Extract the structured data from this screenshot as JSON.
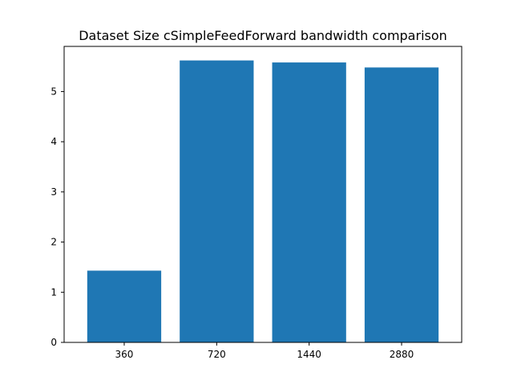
{
  "chart_data": {
    "type": "bar",
    "title": "Dataset Size cSimpleFeedForward bandwidth comparison",
    "xlabel": "",
    "ylabel": "",
    "categories": [
      "360",
      "720",
      "1440",
      "2880"
    ],
    "values": [
      1.43,
      5.62,
      5.58,
      5.48
    ],
    "ylim": [
      0,
      5.9
    ],
    "yticks": [
      0,
      1,
      2,
      3,
      4,
      5
    ],
    "bar_color": "#1f77b4",
    "grid": false,
    "legend": "none"
  }
}
